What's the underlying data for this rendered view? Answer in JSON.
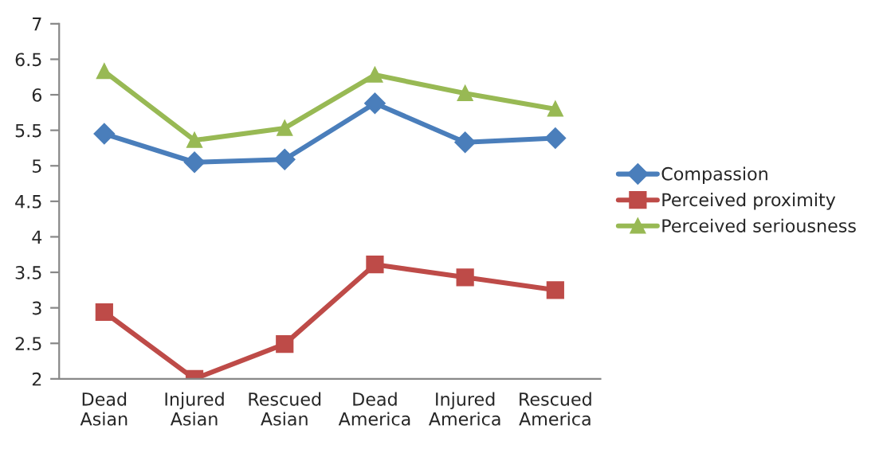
{
  "chart_data": {
    "type": "line",
    "categories": [
      "Dead\nAsian",
      "Injured\nAsian",
      "Rescued\nAsian",
      "Dead\nAmerica",
      "Injured\nAmerica",
      "Rescued\nAmerica"
    ],
    "series": [
      {
        "name": "Compassion",
        "color": "#4a7ebb",
        "marker": "diamond",
        "values": [
          5.45,
          5.05,
          5.09,
          5.88,
          5.33,
          5.39
        ]
      },
      {
        "name": "Perceived proximity",
        "color": "#be4b48",
        "marker": "square",
        "values": [
          2.94,
          2.0,
          2.49,
          3.61,
          3.43,
          3.25
        ]
      },
      {
        "name": "Perceived seriousness",
        "color": "#98b954",
        "marker": "triangle",
        "values": [
          6.33,
          5.36,
          5.53,
          6.28,
          6.02,
          5.8
        ]
      }
    ],
    "ylim": [
      2,
      7
    ],
    "yticks": [
      2,
      2.5,
      3,
      3.5,
      4,
      4.5,
      5,
      5.5,
      6,
      6.5,
      7
    ],
    "grid": false,
    "legend": "right",
    "line_style": "solid"
  }
}
